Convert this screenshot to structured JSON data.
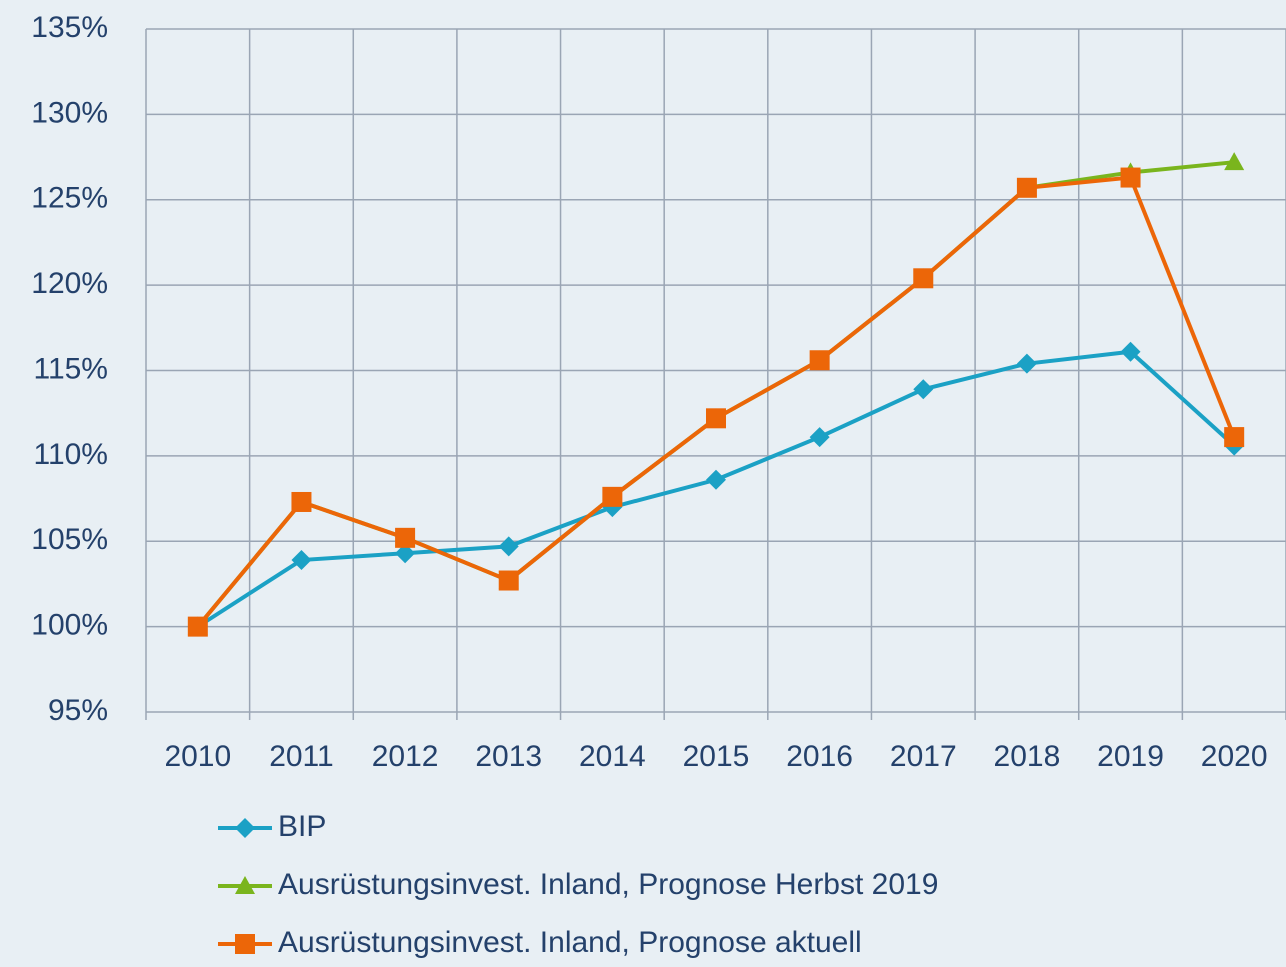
{
  "chart_data": {
    "type": "line",
    "categories": [
      "2010",
      "2011",
      "2012",
      "2013",
      "2014",
      "2015",
      "2016",
      "2017",
      "2018",
      "2019",
      "2020"
    ],
    "series": [
      {
        "name": "BIP",
        "color": "#1ba1c5",
        "marker": "diamond",
        "values": [
          100,
          103.9,
          104.3,
          104.7,
          107.0,
          108.6,
          111.1,
          113.9,
          115.4,
          116.1,
          110.6
        ]
      },
      {
        "name": "Ausrüstungsinvest. Inland, Prognose Herbst 2019",
        "color": "#7ab51d",
        "marker": "triangle",
        "values": [
          100,
          107.3,
          105.2,
          102.7,
          107.6,
          112.2,
          115.6,
          120.4,
          125.7,
          126.6,
          127.2
        ]
      },
      {
        "name": "Ausrüstungsinvest. Inland, Prognose aktuell",
        "color": "#ec6608",
        "marker": "square",
        "values": [
          100,
          107.3,
          105.2,
          102.7,
          107.6,
          112.2,
          115.6,
          120.4,
          125.7,
          126.3,
          111.1
        ]
      }
    ],
    "ylim": [
      95,
      135
    ],
    "yticks": [
      {
        "value": 95,
        "label": "95%"
      },
      {
        "value": 100,
        "label": "100%"
      },
      {
        "value": 105,
        "label": "105%"
      },
      {
        "value": 110,
        "label": "110%"
      },
      {
        "value": 115,
        "label": "115%"
      },
      {
        "value": 120,
        "label": "120%"
      },
      {
        "value": 125,
        "label": "125%"
      },
      {
        "value": 130,
        "label": "130%"
      },
      {
        "value": 135,
        "label": "135%"
      }
    ],
    "grid": true,
    "legend": "bottom"
  }
}
